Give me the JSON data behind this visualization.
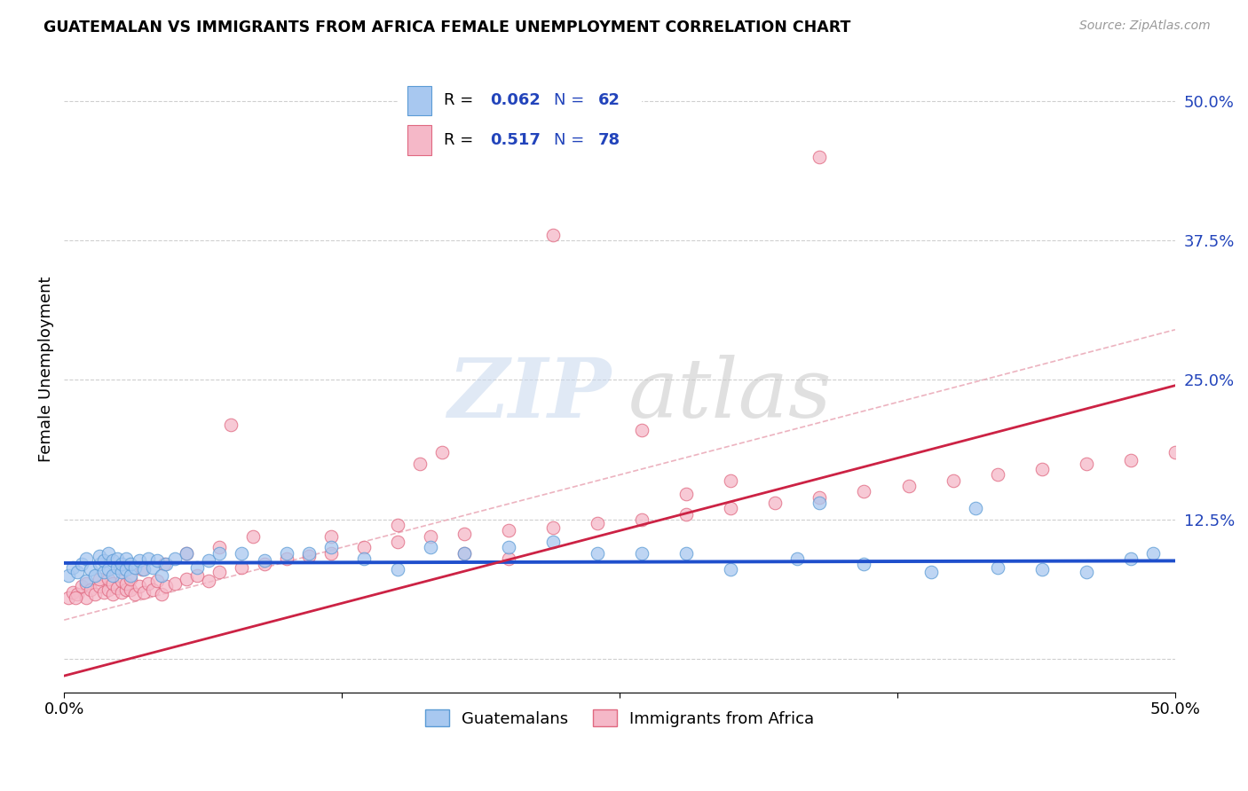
{
  "title": "GUATEMALAN VS IMMIGRANTS FROM AFRICA FEMALE UNEMPLOYMENT CORRELATION CHART",
  "source": "Source: ZipAtlas.com",
  "ylabel": "Female Unemployment",
  "xlim": [
    0.0,
    0.5
  ],
  "ylim": [
    -0.03,
    0.55
  ],
  "yticks": [
    0.0,
    0.125,
    0.25,
    0.375,
    0.5
  ],
  "ytick_labels": [
    "",
    "12.5%",
    "25.0%",
    "37.5%",
    "50.0%"
  ],
  "xticks": [
    0.0,
    0.125,
    0.25,
    0.375,
    0.5
  ],
  "xtick_labels": [
    "0.0%",
    "",
    "",
    "",
    "50.0%"
  ],
  "series1_label": "Guatemalans",
  "series2_label": "Immigrants from Africa",
  "series1_color": "#A8C8F0",
  "series2_color": "#F5B8C8",
  "series1_edge": "#5B9BD5",
  "series2_edge": "#E06880",
  "trendline1_color": "#1F4FCC",
  "trendline2_color": "#CC2244",
  "dashed_color": "#E8A0B0",
  "R1": 0.062,
  "N1": 62,
  "R2": 0.517,
  "N2": 78,
  "legend_text_color": "#2244BB",
  "background_color": "#FFFFFF",
  "grid_color": "#BBBBBB",
  "blue_x": [
    0.002,
    0.004,
    0.006,
    0.008,
    0.01,
    0.01,
    0.012,
    0.014,
    0.016,
    0.016,
    0.018,
    0.018,
    0.02,
    0.02,
    0.022,
    0.022,
    0.024,
    0.024,
    0.026,
    0.026,
    0.028,
    0.028,
    0.03,
    0.03,
    0.032,
    0.034,
    0.036,
    0.038,
    0.04,
    0.042,
    0.044,
    0.046,
    0.05,
    0.055,
    0.06,
    0.065,
    0.07,
    0.08,
    0.09,
    0.1,
    0.11,
    0.12,
    0.135,
    0.15,
    0.165,
    0.18,
    0.2,
    0.22,
    0.24,
    0.26,
    0.28,
    0.3,
    0.33,
    0.36,
    0.39,
    0.42,
    0.44,
    0.46,
    0.48,
    0.49,
    0.34,
    0.41
  ],
  "blue_y": [
    0.075,
    0.082,
    0.078,
    0.085,
    0.07,
    0.09,
    0.08,
    0.075,
    0.085,
    0.092,
    0.078,
    0.088,
    0.08,
    0.095,
    0.075,
    0.088,
    0.082,
    0.09,
    0.078,
    0.085,
    0.08,
    0.09,
    0.075,
    0.085,
    0.082,
    0.088,
    0.08,
    0.09,
    0.082,
    0.088,
    0.075,
    0.085,
    0.09,
    0.095,
    0.082,
    0.088,
    0.095,
    0.095,
    0.088,
    0.095,
    0.095,
    0.1,
    0.09,
    0.08,
    0.1,
    0.095,
    0.1,
    0.105,
    0.095,
    0.095,
    0.095,
    0.08,
    0.09,
    0.085,
    0.078,
    0.082,
    0.08,
    0.078,
    0.09,
    0.095,
    0.14,
    0.135
  ],
  "pink_x": [
    0.002,
    0.004,
    0.006,
    0.008,
    0.01,
    0.01,
    0.012,
    0.014,
    0.016,
    0.016,
    0.018,
    0.02,
    0.02,
    0.022,
    0.022,
    0.024,
    0.026,
    0.026,
    0.028,
    0.028,
    0.03,
    0.03,
    0.032,
    0.034,
    0.036,
    0.038,
    0.04,
    0.042,
    0.044,
    0.046,
    0.05,
    0.055,
    0.06,
    0.065,
    0.07,
    0.08,
    0.09,
    0.1,
    0.11,
    0.12,
    0.135,
    0.15,
    0.165,
    0.18,
    0.2,
    0.22,
    0.24,
    0.26,
    0.28,
    0.3,
    0.32,
    0.34,
    0.36,
    0.38,
    0.4,
    0.42,
    0.44,
    0.46,
    0.48,
    0.5,
    0.035,
    0.045,
    0.055,
    0.07,
    0.085,
    0.12,
    0.15,
    0.005,
    0.3,
    0.28,
    0.16,
    0.26,
    0.2,
    0.17,
    0.075,
    0.18,
    0.22,
    0.34
  ],
  "pink_y": [
    0.055,
    0.06,
    0.058,
    0.065,
    0.055,
    0.068,
    0.062,
    0.058,
    0.065,
    0.072,
    0.06,
    0.062,
    0.072,
    0.058,
    0.068,
    0.064,
    0.06,
    0.07,
    0.062,
    0.068,
    0.062,
    0.072,
    0.058,
    0.065,
    0.06,
    0.068,
    0.062,
    0.07,
    0.058,
    0.065,
    0.068,
    0.072,
    0.075,
    0.07,
    0.078,
    0.082,
    0.085,
    0.09,
    0.092,
    0.095,
    0.1,
    0.105,
    0.11,
    0.112,
    0.115,
    0.118,
    0.122,
    0.125,
    0.13,
    0.135,
    0.14,
    0.145,
    0.15,
    0.155,
    0.16,
    0.165,
    0.17,
    0.175,
    0.178,
    0.185,
    0.08,
    0.085,
    0.095,
    0.1,
    0.11,
    0.11,
    0.12,
    0.055,
    0.16,
    0.148,
    0.175,
    0.205,
    0.09,
    0.185,
    0.21,
    0.095,
    0.38,
    0.45
  ]
}
